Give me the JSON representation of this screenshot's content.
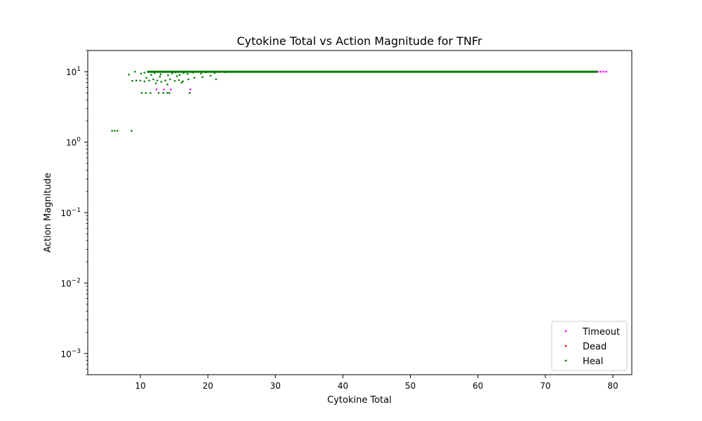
{
  "chart_data": {
    "type": "scatter",
    "title": "Cytokine Total vs Action Magnitude for TNFr",
    "xlabel": "Cytokine Total",
    "ylabel": "Action Magnitude",
    "xlim": [
      2.2,
      82.8
    ],
    "ylim": [
      0.0005,
      20
    ],
    "yscale": "log",
    "xticks": [
      "10",
      "20",
      "30",
      "40",
      "50",
      "60",
      "70",
      "80"
    ],
    "yticks": [
      {
        "value": 10,
        "base": "10",
        "exp": "1"
      },
      {
        "value": 1,
        "base": "10",
        "exp": "0"
      },
      {
        "value": 0.1,
        "base": "10",
        "exp": "−1"
      },
      {
        "value": 0.01,
        "base": "10",
        "exp": "−2"
      },
      {
        "value": 0.001,
        "base": "10",
        "exp": "−3"
      }
    ],
    "grid": false,
    "legend_position": "lower-right",
    "series": [
      {
        "name": "Timeout",
        "color": "#ff00ff",
        "points": [
          [
            12.4,
            5.6
          ],
          [
            13.5,
            5.6
          ],
          [
            14.5,
            5.6
          ],
          [
            17.4,
            5.6
          ],
          [
            77.8,
            10
          ],
          [
            78.2,
            10
          ],
          [
            78.6,
            10
          ],
          [
            79.0,
            10
          ]
        ]
      },
      {
        "name": "Dead",
        "color": "#ff0000",
        "points": []
      },
      {
        "name": "Heal",
        "color": "#008000",
        "points": [
          [
            5.8,
            1.45
          ],
          [
            6.2,
            1.45
          ],
          [
            6.6,
            1.45
          ],
          [
            8.7,
            1.45
          ],
          [
            10.2,
            5.0
          ],
          [
            10.8,
            5.0
          ],
          [
            11.5,
            5.0
          ],
          [
            12.7,
            5.0
          ],
          [
            13.4,
            5.0
          ],
          [
            14.0,
            5.0
          ],
          [
            14.3,
            5.0
          ],
          [
            17.3,
            5.0
          ],
          [
            8.3,
            9.1
          ],
          [
            9.2,
            10.0
          ],
          [
            10.1,
            9.4
          ],
          [
            10.6,
            9.7
          ],
          [
            11.2,
            10.0
          ],
          [
            11.6,
            9.0
          ],
          [
            12.1,
            9.6
          ],
          [
            12.6,
            10.0
          ],
          [
            13.0,
            9.2
          ],
          [
            13.6,
            10.0
          ],
          [
            14.1,
            8.9
          ],
          [
            14.7,
            9.5
          ],
          [
            15.2,
            9.8
          ],
          [
            15.8,
            9.0
          ],
          [
            16.4,
            9.6
          ],
          [
            17.0,
            9.3
          ],
          [
            17.8,
            9.7
          ],
          [
            18.4,
            10.0
          ],
          [
            19.0,
            9.4
          ],
          [
            19.7,
            9.8
          ],
          [
            20.3,
            10.0
          ],
          [
            21.0,
            9.6
          ],
          [
            21.8,
            10.0
          ],
          [
            22.6,
            9.8
          ],
          [
            23.5,
            10.0
          ],
          [
            24.4,
            9.9
          ],
          [
            25.5,
            10.0
          ],
          [
            9.4,
            7.5
          ],
          [
            10.0,
            7.5
          ],
          [
            10.6,
            7.3
          ],
          [
            11.3,
            7.5
          ],
          [
            11.9,
            7.8
          ],
          [
            12.5,
            7.5
          ],
          [
            13.1,
            7.2
          ],
          [
            13.7,
            7.5
          ],
          [
            14.4,
            7.8
          ],
          [
            15.1,
            7.4
          ],
          [
            15.7,
            7.6
          ],
          [
            16.3,
            7.3
          ],
          [
            17.1,
            7.8
          ],
          [
            18.0,
            8.2
          ],
          [
            19.2,
            8.4
          ],
          [
            20.4,
            8.8
          ],
          [
            21.2,
            7.8
          ],
          [
            12.3,
            6.8
          ],
          [
            14.0,
            6.6
          ],
          [
            16.1,
            7.0
          ],
          [
            8.8,
            7.4
          ],
          [
            10.9,
            8.2
          ],
          [
            12.9,
            8.5
          ],
          [
            15.4,
            8.6
          ]
        ]
      }
    ],
    "heal_band": {
      "x_from": 11.0,
      "x_to": 77.7,
      "y": 10
    }
  }
}
